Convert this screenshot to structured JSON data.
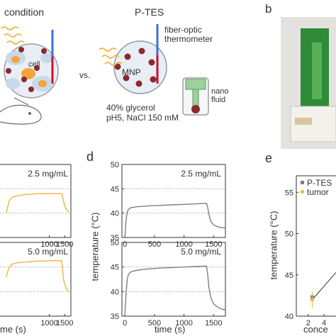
{
  "panel_top": {
    "left_heading": "condition",
    "right_heading": "P-TES",
    "vs": "vs.",
    "cell_label": "cell",
    "mnp_label": "MNP",
    "thermometer_label_1": "fiber-optic",
    "thermometer_label_2": "thermometer",
    "nano_label_1": "nano",
    "nano_label_2": "fluid",
    "medium_line_1": "40% glycerol",
    "medium_line_2": "pH5, NaCl 150 mM",
    "panel_b_letter": "b"
  },
  "panel_d": {
    "letter": "d",
    "ylabel": "temperature (°C)",
    "xlabel": "time (s)"
  },
  "panel_e": {
    "letter": "e",
    "ylabel": "temperature (°C)",
    "xlabel_partial": "conce"
  },
  "panel_left": {
    "xlabel_partial": "me (s)"
  },
  "colors": {
    "gray_trace": "#7f7f7f",
    "orange_trace": "#f0b43c",
    "ptes_marker": "#808080",
    "tumor_marker": "#f0b43c",
    "orange_particles": "#f5a43a",
    "mnp_dots": "#8b2a2a"
  },
  "chart_data": [
    {
      "type": "line",
      "panel": "left (cropped)",
      "subplots": [
        {
          "annotation": "2.5 mg/mL",
          "xticks": [
            "1000",
            "1500"
          ],
          "series": [
            {
              "color": "#f0b43c",
              "x": [
                -400,
                -300,
                -200,
                0,
                200,
                400,
                600,
                800,
                1000,
                1200,
                1400,
                1430,
                1460,
                1500,
                1550,
                1600,
                1650
              ],
              "y": [
                40.0,
                42.5,
                43.3,
                43.6,
                43.8,
                43.9,
                44.0,
                44.0,
                44.0,
                44.0,
                44.0,
                43.5,
                42.5,
                41.5,
                40.8,
                40.4,
                40.2
              ]
            }
          ]
        },
        {
          "annotation": "5.0 mg/mL",
          "xticks": [
            "1000",
            "1500"
          ],
          "series": [
            {
              "color": "#f0b43c",
              "x": [
                -400,
                -300,
                -200,
                0,
                200,
                400,
                600,
                800,
                1000,
                1200,
                1400,
                1430,
                1460,
                1500,
                1550,
                1600,
                1650
              ],
              "y": [
                43.0,
                45.0,
                45.6,
                45.9,
                46.0,
                46.1,
                46.2,
                46.2,
                46.3,
                46.3,
                46.3,
                44.5,
                42.5,
                41.5,
                40.7,
                40.2,
                39.9
              ]
            }
          ]
        }
      ]
    },
    {
      "type": "line",
      "panel": "d",
      "xlabel": "time (s)",
      "ylabel": "temperature (°C)",
      "xlim": [
        -50,
        1700
      ],
      "xticks": [
        "0",
        "500",
        "1000",
        "1500"
      ],
      "ylim": [
        35,
        50
      ],
      "yticks": [
        "35",
        "40",
        "45",
        "50"
      ],
      "subplots": [
        {
          "annotation": "2.5 mg/mL",
          "gridlines": [
            45,
            40
          ],
          "series": [
            {
              "color": "#7f7f7f",
              "x": [
                0,
                20,
                40,
                60,
                100,
                150,
                200,
                300,
                400,
                600,
                800,
                1000,
                1200,
                1380,
                1400,
                1420,
                1440,
                1460,
                1500,
                1550,
                1600,
                1650,
                1700
              ],
              "y": [
                35.0,
                38.5,
                40.2,
                40.8,
                41.1,
                41.2,
                41.3,
                41.4,
                41.5,
                41.6,
                41.7,
                41.8,
                41.9,
                42.0,
                41.2,
                39.8,
                38.8,
                38.2,
                37.6,
                37.3,
                37.1,
                37.0,
                37.0
              ]
            }
          ]
        },
        {
          "annotation": "5.0 mg/mL",
          "gridlines": [
            45,
            40
          ],
          "series": [
            {
              "color": "#7f7f7f",
              "x": [
                0,
                20,
                40,
                60,
                100,
                150,
                200,
                300,
                400,
                600,
                800,
                1000,
                1200,
                1380,
                1400,
                1420,
                1440,
                1460,
                1500,
                1550,
                1600,
                1650,
                1700
              ],
              "y": [
                35.5,
                39.5,
                42.5,
                43.5,
                44.0,
                44.2,
                44.3,
                44.5,
                44.6,
                44.8,
                44.9,
                45.0,
                45.1,
                45.2,
                43.5,
                41.0,
                39.5,
                38.5,
                37.5,
                37.0,
                36.6,
                36.4,
                36.3
              ]
            }
          ]
        }
      ]
    },
    {
      "type": "scatter",
      "panel": "e",
      "ylabel": "temperature (°C)",
      "ylim": [
        40,
        57
      ],
      "yticks": [
        "40",
        "45",
        "50",
        "55"
      ],
      "xticks": [
        "2",
        "4"
      ],
      "legend": "top-left",
      "series": [
        {
          "name": "P-TES",
          "color": "#808080",
          "x": [
            2.5
          ],
          "y": [
            42.3
          ],
          "yerr": [
            0.5
          ]
        },
        {
          "name": "tumor",
          "color": "#f0b43c",
          "x": [
            2.5
          ],
          "y": [
            42.0
          ],
          "yerr": [
            1.0
          ]
        }
      ]
    }
  ]
}
